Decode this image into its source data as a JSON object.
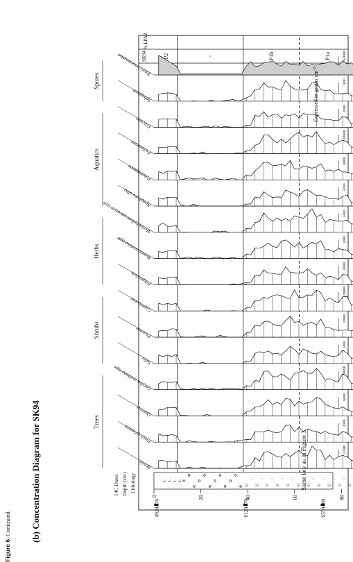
{
  "figure": {
    "title": "(b) Concentration Diagram for SK94",
    "key_note": "Same key as in Figure 3",
    "units_note": "Expressed in grains cm",
    "units_superscript": "-3",
    "caption_label": "Figure 6",
    "caption_text": "Continued."
  },
  "left_columns": {
    "c14_label": "14C Dates",
    "depth_label": "Depth (cm)",
    "lithology_label": "Lithology",
    "depth_ticks": [
      "0",
      "20",
      "40",
      "60",
      "80"
    ],
    "c14_dates": [
      "4920±70",
      "6120±70",
      "6550±80"
    ]
  },
  "groups": [
    "Trees",
    "Shrubs",
    "Herbs",
    "Aquatics",
    "Spores"
  ],
  "taxa": [
    {
      "name": "Betula",
      "max": "12000"
    },
    {
      "name": "Pinus sylvestris",
      "max": "3000"
    },
    {
      "name": "Quercus",
      "max": "6000"
    },
    {
      "name": "Corylus avellana-type",
      "max": "10000"
    },
    {
      "name": "Salix",
      "max": "3000"
    },
    {
      "name": "Poaceae",
      "max": "30000"
    },
    {
      "name": "Cyperaceae",
      "max": "120000"
    },
    {
      "name": "Filipendula",
      "max": "6000"
    },
    {
      "name": "Rumex acetosa-type",
      "max": "3000"
    },
    {
      "name": "Myriophyllum spicatum-type",
      "max": "5000"
    },
    {
      "name": "Nymphaea alba",
      "max": "5000"
    },
    {
      "name": "Potamogeton",
      "max": "6000"
    },
    {
      "name": "Pediastrum",
      "max": "90000"
    },
    {
      "name": "Filicales",
      "max": "4000"
    },
    {
      "name": "Sphagnum",
      "max": "1000"
    },
    {
      "name": "Total concentration",
      "max": "150000"
    }
  ],
  "zones": {
    "header_site": "SK94",
    "header_label": "% LPAZ",
    "labels": [
      "P2",
      "-",
      "P1b",
      "P1a"
    ]
  }
}
